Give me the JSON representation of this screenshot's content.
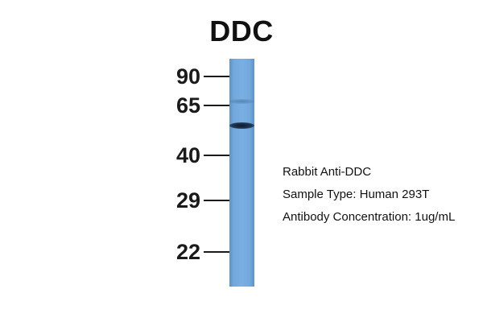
{
  "title": "DDC",
  "markers": [
    {
      "label": "90"
    },
    {
      "label": "65"
    },
    {
      "label": "40"
    },
    {
      "label": "29"
    },
    {
      "label": "22"
    }
  ],
  "info": {
    "antibody": "Rabbit Anti-DDC",
    "sample_type": "Sample Type: Human 293T",
    "concentration": "Antibody Concentration: 1ug/mL"
  },
  "colors": {
    "lane": "#79afe2",
    "band": "#1f3550"
  }
}
